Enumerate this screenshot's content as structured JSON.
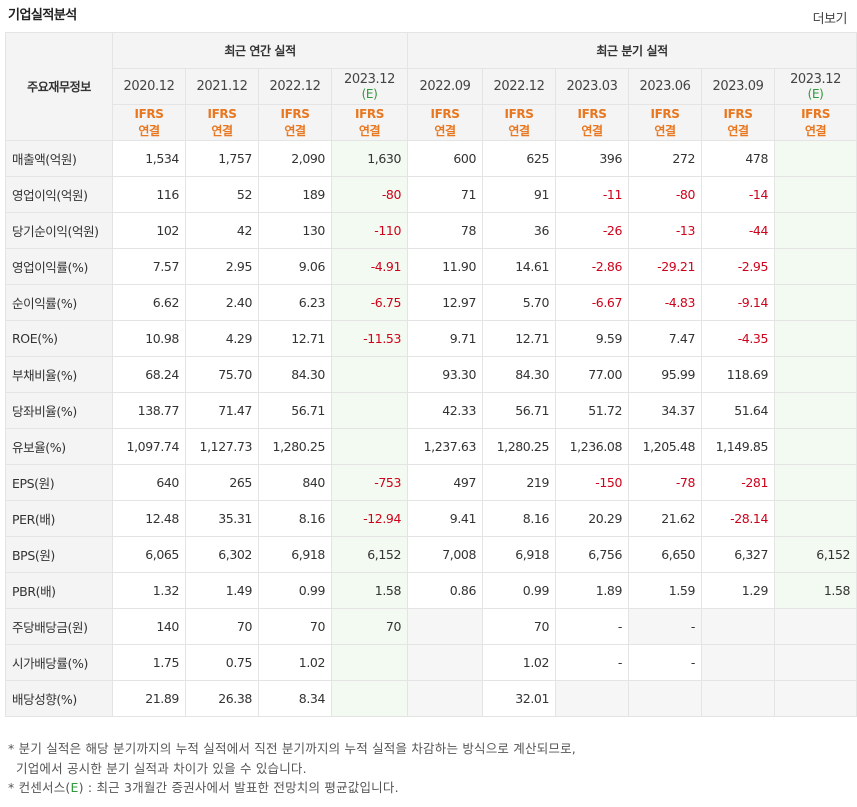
{
  "title": "기업실적분석",
  "more_label": "더보기",
  "corner_label": "주요재무정보",
  "groups": {
    "annual": "최근 연간 실적",
    "quarterly": "최근 분기 실적"
  },
  "periods": [
    {
      "label": "2020.12",
      "est": ""
    },
    {
      "label": "2021.12",
      "est": ""
    },
    {
      "label": "2022.12",
      "est": ""
    },
    {
      "label": "2023.12",
      "est": "(E)"
    },
    {
      "label": "2022.09",
      "est": ""
    },
    {
      "label": "2022.12",
      "est": ""
    },
    {
      "label": "2023.03",
      "est": ""
    },
    {
      "label": "2023.06",
      "est": ""
    },
    {
      "label": "2023.09",
      "est": ""
    },
    {
      "label": "2023.12",
      "est": "(E)"
    }
  ],
  "standard_line1": "IFRS",
  "standard_line2": "연결",
  "rows": [
    {
      "name": "매출액(억원)",
      "values": [
        "1,534",
        "1,757",
        "2,090",
        "1,630",
        "600",
        "625",
        "396",
        "272",
        "478",
        ""
      ]
    },
    {
      "name": "영업이익(억원)",
      "values": [
        "116",
        "52",
        "189",
        "-80",
        "71",
        "91",
        "-11",
        "-80",
        "-14",
        ""
      ]
    },
    {
      "name": "당기순이익(억원)",
      "values": [
        "102",
        "42",
        "130",
        "-110",
        "78",
        "36",
        "-26",
        "-13",
        "-44",
        ""
      ]
    },
    {
      "name": "영업이익률(%)",
      "values": [
        "7.57",
        "2.95",
        "9.06",
        "-4.91",
        "11.90",
        "14.61",
        "-2.86",
        "-29.21",
        "-2.95",
        ""
      ]
    },
    {
      "name": "순이익률(%)",
      "values": [
        "6.62",
        "2.40",
        "6.23",
        "-6.75",
        "12.97",
        "5.70",
        "-6.67",
        "-4.83",
        "-9.14",
        ""
      ]
    },
    {
      "name": "ROE(%)",
      "values": [
        "10.98",
        "4.29",
        "12.71",
        "-11.53",
        "9.71",
        "12.71",
        "9.59",
        "7.47",
        "-4.35",
        ""
      ]
    },
    {
      "name": "부채비율(%)",
      "values": [
        "68.24",
        "75.70",
        "84.30",
        "",
        "93.30",
        "84.30",
        "77.00",
        "95.99",
        "118.69",
        ""
      ]
    },
    {
      "name": "당좌비율(%)",
      "values": [
        "138.77",
        "71.47",
        "56.71",
        "",
        "42.33",
        "56.71",
        "51.72",
        "34.37",
        "51.64",
        ""
      ]
    },
    {
      "name": "유보율(%)",
      "values": [
        "1,097.74",
        "1,127.73",
        "1,280.25",
        "",
        "1,237.63",
        "1,280.25",
        "1,236.08",
        "1,205.48",
        "1,149.85",
        ""
      ]
    },
    {
      "name": "EPS(원)",
      "values": [
        "640",
        "265",
        "840",
        "-753",
        "497",
        "219",
        "-150",
        "-78",
        "-281",
        ""
      ]
    },
    {
      "name": "PER(배)",
      "values": [
        "12.48",
        "35.31",
        "8.16",
        "-12.94",
        "9.41",
        "8.16",
        "20.29",
        "21.62",
        "-28.14",
        ""
      ]
    },
    {
      "name": "BPS(원)",
      "values": [
        "6,065",
        "6,302",
        "6,918",
        "6,152",
        "7,008",
        "6,918",
        "6,756",
        "6,650",
        "6,327",
        "6,152"
      ]
    },
    {
      "name": "PBR(배)",
      "values": [
        "1.32",
        "1.49",
        "0.99",
        "1.58",
        "0.86",
        "0.99",
        "1.89",
        "1.59",
        "1.29",
        "1.58"
      ]
    },
    {
      "name": "주당배당금(원)",
      "values": [
        "140",
        "70",
        "70",
        "70",
        "",
        "70",
        "-",
        "-",
        "",
        ""
      ]
    },
    {
      "name": "시가배당률(%)",
      "values": [
        "1.75",
        "0.75",
        "1.02",
        "",
        "",
        "1.02",
        "-",
        "-",
        "",
        ""
      ]
    },
    {
      "name": "배당성향(%)",
      "values": [
        "21.89",
        "26.38",
        "8.34",
        "",
        "",
        "32.01",
        "",
        "",
        "",
        ""
      ]
    }
  ],
  "notes": {
    "line1": "* 분기 실적은 해당 분기까지의 누적 실적에서 직전 분기까지의 누적 실적을 차감하는 방식으로 계산되므로,",
    "line2": "기업에서 공시한 분기 실적과 차이가 있을 수 있습니다.",
    "line3_prefix": "* 컨센서스(",
    "line3_mark": "E",
    "line3_suffix": ") : 최근 3개월간 증권사에서 발표한 전망치의 평균값입니다."
  },
  "colors": {
    "negative": "#d0021b",
    "estimate_text": "#2e9a3b",
    "standard_text": "#e8771f",
    "estimate_bg": "#f3faf1"
  }
}
